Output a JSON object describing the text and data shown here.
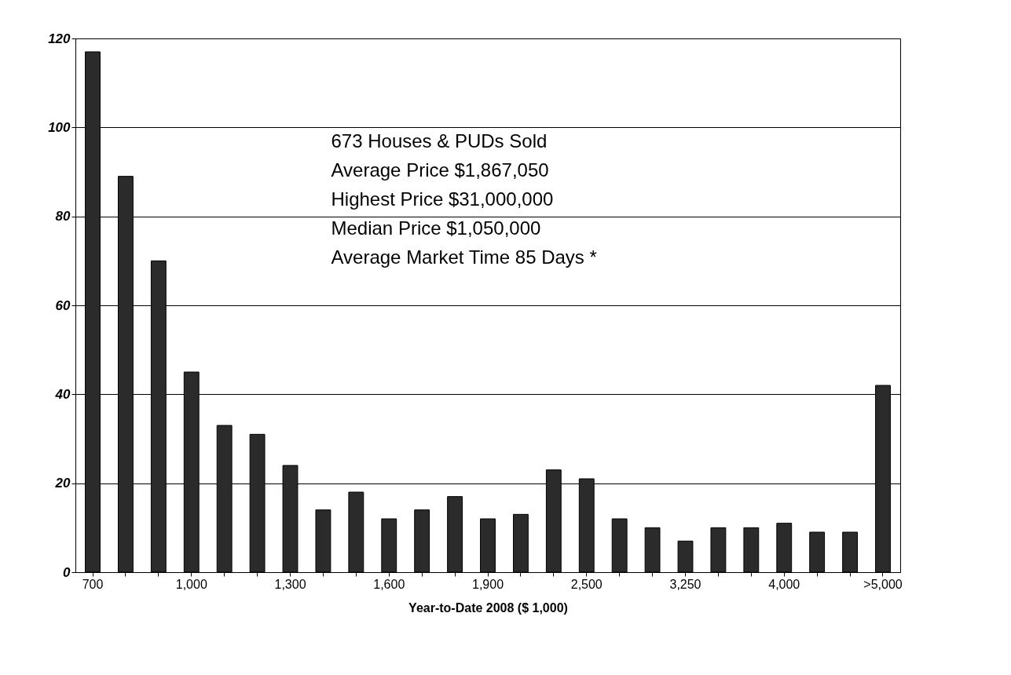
{
  "chart_data": {
    "type": "bar",
    "xlabel": "Year-to-Date  2008  ($ 1,000)",
    "categories": [
      "700",
      null,
      null,
      "1,000",
      null,
      null,
      "1,300",
      null,
      null,
      "1,600",
      null,
      null,
      "1,900",
      null,
      null,
      "2,500",
      null,
      null,
      "3,250",
      null,
      null,
      "4,000",
      null,
      null,
      ">5,000"
    ],
    "values": [
      117,
      89,
      70,
      45,
      33,
      31,
      24,
      14,
      18,
      12,
      14,
      17,
      12,
      13,
      23,
      21,
      12,
      10,
      7,
      10,
      10,
      11,
      9,
      9,
      42
    ],
    "color": "#2b2b2b",
    "ylim": [
      0,
      120
    ],
    "yticks": [
      0,
      20,
      40,
      60,
      80,
      100,
      120
    ],
    "grid": "y",
    "annotations": [
      "673 Houses & PUDs Sold",
      "Average Price $1,867,050",
      "Highest Price $31,000,000",
      "Median Price $1,050,000",
      "Average Market Time 85 Days *"
    ]
  }
}
